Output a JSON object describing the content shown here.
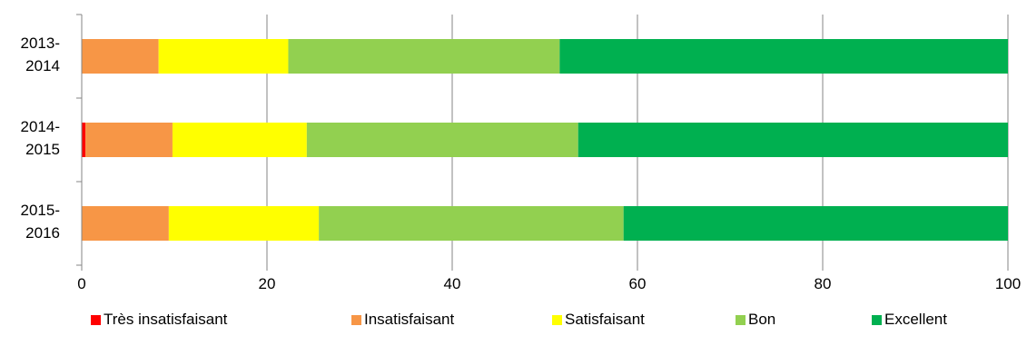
{
  "chart_data": {
    "type": "bar",
    "orientation": "horizontal",
    "stacked": true,
    "categories": [
      [
        "2013-",
        "2014"
      ],
      [
        "2014-",
        "2015"
      ],
      [
        "2015-",
        "2016"
      ]
    ],
    "series": [
      {
        "name": "Très insatisfaisant",
        "color": "#ff0000",
        "values": [
          0,
          0.4,
          0
        ]
      },
      {
        "name": "Insatisfaisant",
        "color": "#f79646",
        "values": [
          8.3,
          9.4,
          9.4
        ]
      },
      {
        "name": "Satisfaisant",
        "color": "#ffff00",
        "values": [
          14,
          14.5,
          16.2
        ]
      },
      {
        "name": "Bon",
        "color": "#92d050",
        "values": [
          29.3,
          29.3,
          32.9
        ]
      },
      {
        "name": "Excellent",
        "color": "#00b050",
        "values": [
          48.4,
          46.4,
          41.5
        ]
      }
    ],
    "xlim": [
      0,
      100
    ],
    "xticks": [
      "0",
      "20",
      "40",
      "60",
      "80",
      "100"
    ],
    "grid": "vertical",
    "legend_position": "bottom"
  }
}
